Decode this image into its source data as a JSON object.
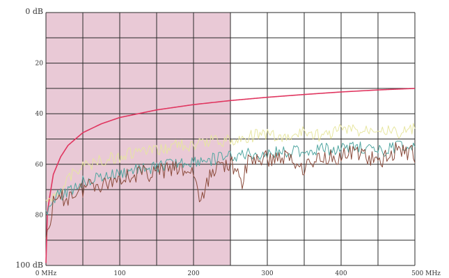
{
  "chart_data": {
    "type": "line",
    "title": "",
    "xlabel": "",
    "ylabel": "",
    "xlim": [
      0,
      500
    ],
    "ylim": [
      0,
      100
    ],
    "y_inverted": true,
    "grid": true,
    "x_ticks": [
      {
        "value": 0,
        "label": "0 MHz"
      },
      {
        "value": 100,
        "label": "100"
      },
      {
        "value": 200,
        "label": "200"
      },
      {
        "value": 300,
        "label": "300"
      },
      {
        "value": 400,
        "label": "400"
      },
      {
        "value": 500,
        "label": "500 MHz"
      }
    ],
    "y_ticks": [
      {
        "value": 0,
        "label": "0 dB"
      },
      {
        "value": 20,
        "label": "20"
      },
      {
        "value": 40,
        "label": "40"
      },
      {
        "value": 60,
        "label": "60"
      },
      {
        "value": 80,
        "label": "80"
      },
      {
        "value": 100,
        "label": "100 dB"
      }
    ],
    "shaded_region": {
      "x": [
        0,
        250
      ],
      "y": [
        0,
        100
      ],
      "color": "#e9c9d6"
    },
    "series": [
      {
        "color": "#e0355f",
        "x": [
          0,
          2,
          5,
          10,
          20,
          30,
          50,
          75,
          100,
          150,
          200,
          250,
          300,
          350,
          400,
          450,
          500
        ],
        "values": [
          99,
          79,
          73,
          64,
          57,
          52.5,
          47.5,
          44,
          41.5,
          38.5,
          36.4,
          34.8,
          33.5,
          32.4,
          31.4,
          30.6,
          30
        ]
      },
      {
        "color": "#e7e6a0",
        "x": [
          0,
          10,
          20,
          30,
          40,
          50,
          60,
          80,
          100,
          125,
          150,
          175,
          200,
          225,
          250,
          275,
          300,
          325,
          350,
          375,
          400,
          425,
          450,
          475,
          500
        ],
        "values": [
          76,
          72,
          70,
          66,
          62,
          61,
          60,
          58,
          57,
          55,
          55,
          52,
          53,
          50,
          51,
          49,
          48,
          50,
          47,
          49,
          46,
          47,
          45,
          48,
          46
        ]
      },
      {
        "color": "#4fa5a0",
        "x": [
          0,
          10,
          20,
          30,
          40,
          50,
          60,
          80,
          100,
          125,
          150,
          175,
          200,
          225,
          250,
          275,
          300,
          325,
          350,
          375,
          400,
          425,
          450,
          475,
          500
        ],
        "values": [
          79,
          73,
          72,
          71,
          69,
          67,
          66,
          65,
          64,
          62,
          61,
          60,
          59,
          58,
          57,
          56,
          56,
          55,
          55,
          54,
          54,
          53,
          55,
          53,
          52
        ]
      },
      {
        "color": "#8a4a3a",
        "x": [
          0,
          10,
          20,
          30,
          40,
          50,
          60,
          80,
          100,
          125,
          150,
          175,
          200,
          210,
          225,
          250,
          265,
          275,
          300,
          325,
          350,
          375,
          400,
          425,
          450,
          475,
          500
        ],
        "values": [
          89,
          76,
          74,
          73,
          71,
          70,
          67,
          68,
          65,
          64,
          63,
          62,
          63,
          76,
          62,
          59,
          68,
          58,
          58,
          57,
          61,
          57,
          57,
          55,
          60,
          54,
          56
        ]
      }
    ]
  }
}
